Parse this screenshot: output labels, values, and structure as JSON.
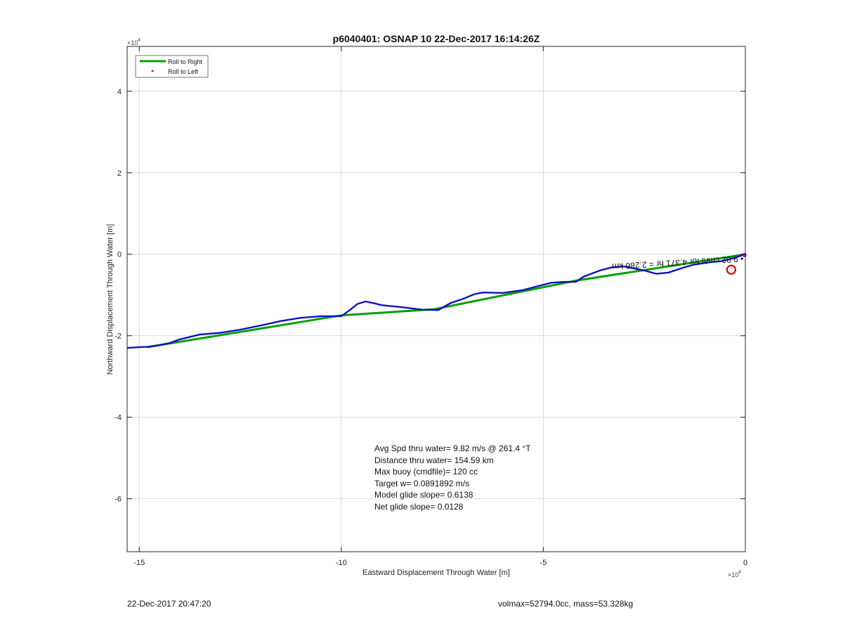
{
  "chart_data": {
    "type": "line",
    "title": "p6040401: OSNAP 10 22-Dec-2017 16:14:26Z",
    "xlabel": "Eastward Displacement Through Water [m]",
    "ylabel": "Northward Displacement Through Water [m]",
    "x_exponent_label": "×10",
    "y_exponent_label": "×10",
    "exponent_power": "4",
    "xlim": [
      -15.3,
      0
    ],
    "ylim": [
      -7.3,
      5.1
    ],
    "grid": true,
    "legend_position": "top-left",
    "x_ticks": [
      {
        "value": -15,
        "label": "-15"
      },
      {
        "value": -10,
        "label": "-10"
      },
      {
        "value": -5,
        "label": "-5"
      },
      {
        "value": 0,
        "label": "0"
      }
    ],
    "y_ticks": [
      {
        "value": 4,
        "label": "4"
      },
      {
        "value": 2,
        "label": "2"
      },
      {
        "value": 0,
        "label": "0"
      },
      {
        "value": -2,
        "label": "-2"
      },
      {
        "value": -4,
        "label": "-4"
      },
      {
        "value": -6,
        "label": "-6"
      }
    ],
    "series": [
      {
        "name": "Roll to Right",
        "color": "#00a000",
        "style": "line",
        "x": [
          -14.8,
          -10.0,
          -7.7,
          -4.2,
          -0.3,
          0.0
        ],
        "y": [
          -2.28,
          -1.5,
          -1.35,
          -0.65,
          -0.05,
          0.0
        ]
      },
      {
        "name": "Roll to Left",
        "color": "#ff0000",
        "style": "dot",
        "x": [],
        "y": []
      },
      {
        "name": "",
        "color": "#1010c0",
        "style": "line",
        "x": [
          -15.3,
          -15.0,
          -14.75,
          -14.5,
          -14.25,
          -14.0,
          -13.75,
          -13.5,
          -13.0,
          -12.5,
          -12.0,
          -11.5,
          -11.0,
          -10.5,
          -10.0,
          -9.8,
          -9.6,
          -9.4,
          -9.2,
          -9.0,
          -8.5,
          -8.0,
          -7.6,
          -7.3,
          -7.0,
          -6.7,
          -6.5,
          -6.0,
          -5.5,
          -5.2,
          -4.8,
          -4.5,
          -4.2,
          -4.0,
          -3.6,
          -3.3,
          -3.0,
          -2.5,
          -2.2,
          -1.9,
          -1.6,
          -1.3,
          -0.9,
          -0.6,
          -0.3,
          0.0
        ],
        "y": [
          -2.3,
          -2.28,
          -2.27,
          -2.23,
          -2.18,
          -2.09,
          -2.03,
          -1.97,
          -1.93,
          -1.85,
          -1.75,
          -1.64,
          -1.56,
          -1.52,
          -1.52,
          -1.38,
          -1.22,
          -1.16,
          -1.2,
          -1.25,
          -1.3,
          -1.36,
          -1.37,
          -1.2,
          -1.1,
          -0.98,
          -0.94,
          -0.95,
          -0.88,
          -0.8,
          -0.7,
          -0.68,
          -0.68,
          -0.55,
          -0.4,
          -0.32,
          -0.3,
          -0.4,
          -0.48,
          -0.45,
          -0.35,
          -0.26,
          -0.2,
          -0.17,
          -0.1,
          0.0
        ]
      }
    ],
    "markers": [
      {
        "name": "red-circle",
        "x": -0.35,
        "y": -0.38,
        "color": "#e00000"
      },
      {
        "name": "magenta-end",
        "x": -0.02,
        "y": -0.02,
        "color": "#c000c0"
      }
    ],
    "annotations": [
      {
        "text": "• 9.82 cm/s for 4.371 hr = 2.286 km",
        "rotated": true
      },
      {
        "text": "Avg Spd thru water=  9.82 m/s @ 261.4 °T"
      },
      {
        "text": "Distance thru water= 154.59 km"
      },
      {
        "text": "Max buoy (cmdfile)= 120 cc"
      },
      {
        "text": "Target w= 0.0891892 m/s"
      },
      {
        "text": "Model glide slope= 0.6138"
      },
      {
        "text": "Net glide slope= 0.0128"
      }
    ]
  },
  "footer": {
    "left": "22-Dec-2017 20:47:20",
    "right": "volmax=52794.0cc, mass=53.328kg"
  }
}
